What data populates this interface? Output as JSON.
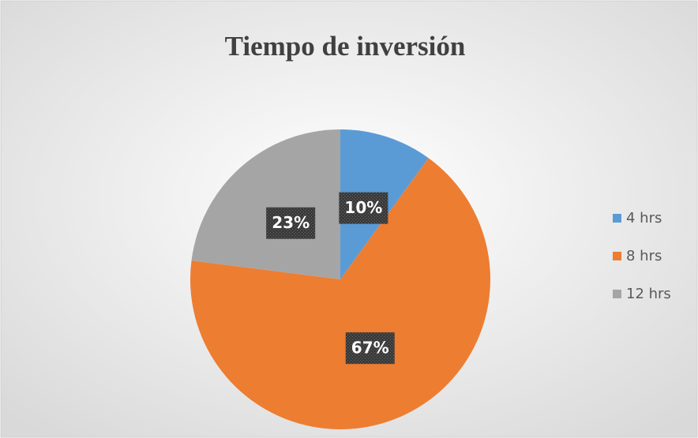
{
  "chart_data": {
    "type": "pie",
    "title": "Tiempo de inversión",
    "categories": [
      "4 hrs",
      "8 hrs",
      "12 hrs"
    ],
    "values": [
      10,
      67,
      23
    ],
    "value_labels": [
      "10%",
      "67%",
      "23%"
    ],
    "colors": [
      "#5b9bd5",
      "#ed7d31",
      "#a5a5a5"
    ],
    "legend": "right"
  }
}
